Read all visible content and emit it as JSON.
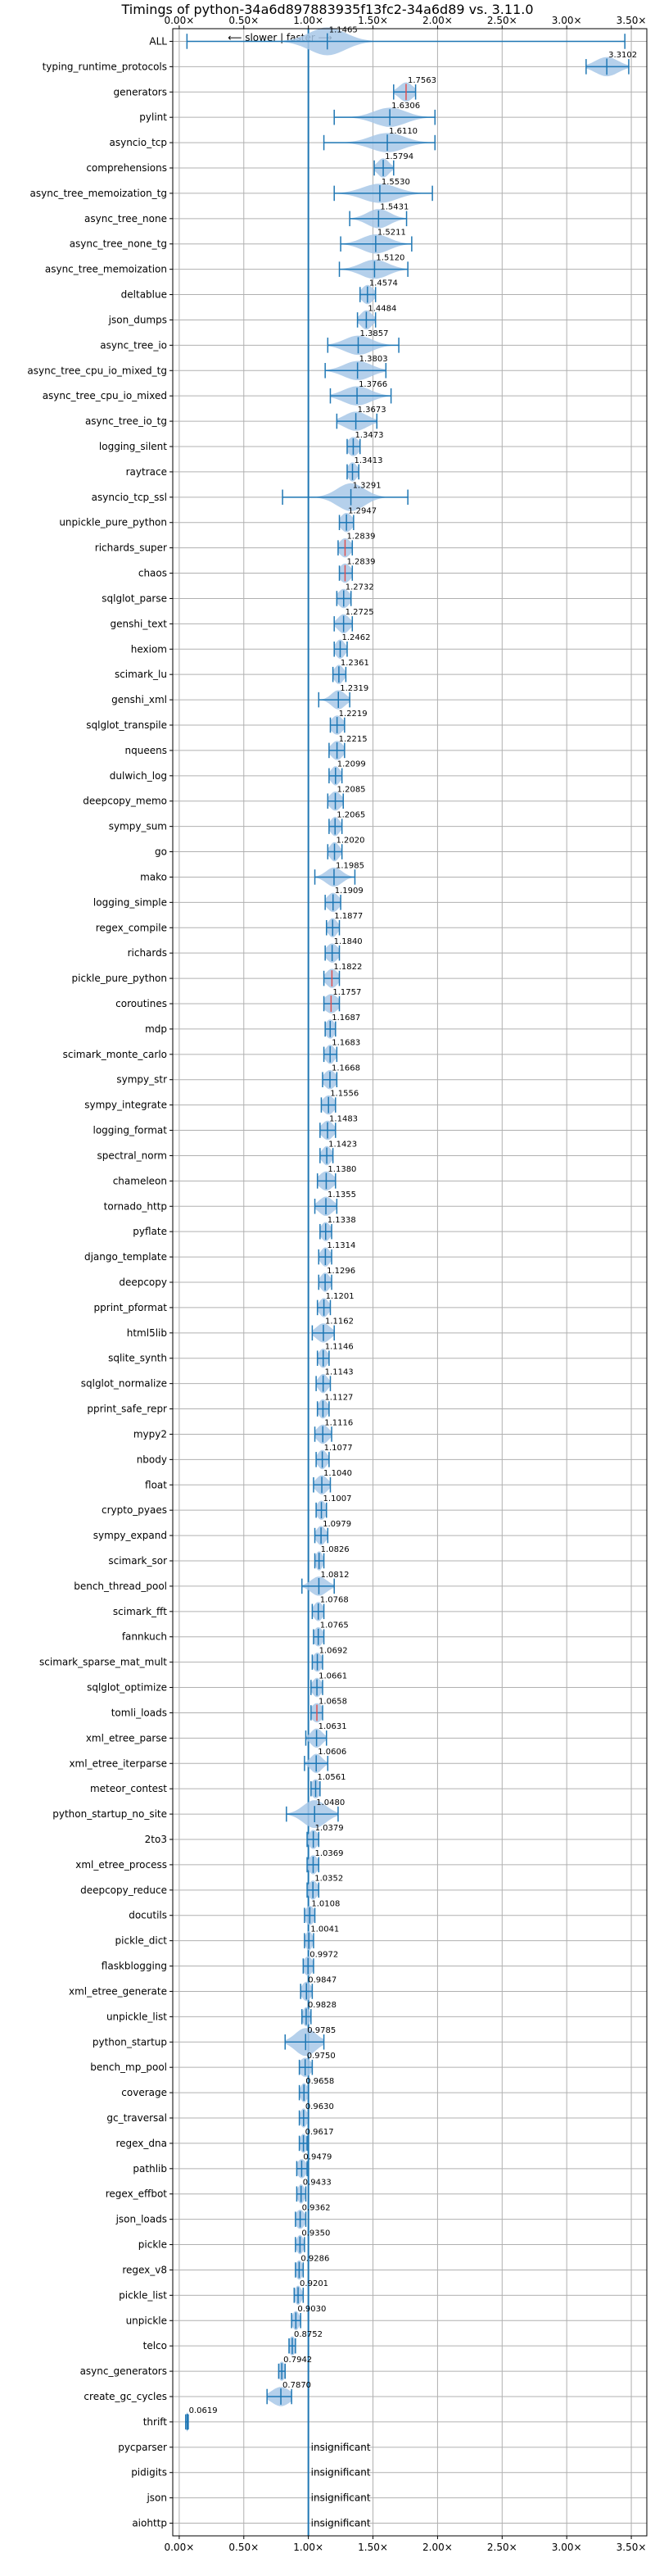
{
  "chart_data": {
    "type": "violin",
    "title": "Timings of python-34a6d897883935f13fc2-34a6d89 vs. 3.11.0",
    "direction_label": "⟵ slower | faster ⟶",
    "x_ticks": [
      0.0,
      0.5,
      1.0,
      1.5,
      2.0,
      2.5,
      3.0,
      3.5
    ],
    "x_tick_labels": [
      "0.00×",
      "0.50×",
      "1.00×",
      "1.50×",
      "2.00×",
      "2.50×",
      "3.00×",
      "3.50×"
    ],
    "xlim": [
      -0.05,
      3.62
    ],
    "reference_line": 1.0,
    "grid": true,
    "colors": {
      "violin": "#a8c8e8",
      "stroke": "#1f77b4",
      "median": "#e05050",
      "grid": "#b0b0b0"
    },
    "insignificant_label": "insignificant",
    "benchmarks": [
      {
        "name": "ALL",
        "value": 1.1465,
        "label": "1.1465",
        "min": 0.06,
        "max": 3.45,
        "spread": 0.16,
        "shape": "wide"
      },
      {
        "name": "typing_runtime_protocols",
        "value": 3.3102,
        "label": "3.3102",
        "min": 3.15,
        "max": 3.48,
        "spread": 0.1
      },
      {
        "name": "generators",
        "value": 1.7563,
        "label": "1.7563",
        "min": 1.66,
        "max": 1.83,
        "spread": 0.06
      },
      {
        "name": "pylint",
        "value": 1.6306,
        "label": "1.6306",
        "min": 1.2,
        "max": 1.98,
        "spread": 0.14
      },
      {
        "name": "asyncio_tcp",
        "value": 1.611,
        "label": "1.6110",
        "min": 1.12,
        "max": 1.98,
        "spread": 0.15
      },
      {
        "name": "comprehensions",
        "value": 1.5794,
        "label": "1.5794",
        "min": 1.51,
        "max": 1.66,
        "spread": 0.05
      },
      {
        "name": "async_tree_memoization_tg",
        "value": 1.553,
        "label": "1.5530",
        "min": 1.2,
        "max": 1.96,
        "spread": 0.15
      },
      {
        "name": "async_tree_none",
        "value": 1.5431,
        "label": "1.5431",
        "min": 1.32,
        "max": 1.76,
        "spread": 0.1
      },
      {
        "name": "async_tree_none_tg",
        "value": 1.5211,
        "label": "1.5211",
        "min": 1.25,
        "max": 1.8,
        "spread": 0.12
      },
      {
        "name": "async_tree_memoization",
        "value": 1.512,
        "label": "1.5120",
        "min": 1.24,
        "max": 1.77,
        "spread": 0.12
      },
      {
        "name": "deltablue",
        "value": 1.4574,
        "label": "1.4574",
        "min": 1.4,
        "max": 1.52,
        "spread": 0.05
      },
      {
        "name": "json_dumps",
        "value": 1.4484,
        "label": "1.4484",
        "min": 1.38,
        "max": 1.52,
        "spread": 0.05
      },
      {
        "name": "async_tree_io",
        "value": 1.3857,
        "label": "1.3857",
        "min": 1.15,
        "max": 1.7,
        "spread": 0.12
      },
      {
        "name": "async_tree_cpu_io_mixed_tg",
        "value": 1.3803,
        "label": "1.3803",
        "min": 1.13,
        "max": 1.6,
        "spread": 0.12
      },
      {
        "name": "async_tree_cpu_io_mixed",
        "value": 1.3766,
        "label": "1.3766",
        "min": 1.17,
        "max": 1.64,
        "spread": 0.12
      },
      {
        "name": "async_tree_io_tg",
        "value": 1.3673,
        "label": "1.3673",
        "min": 1.22,
        "max": 1.53,
        "spread": 0.1
      },
      {
        "name": "logging_silent",
        "value": 1.3473,
        "label": "1.3473",
        "min": 1.3,
        "max": 1.4,
        "spread": 0.05
      },
      {
        "name": "raytrace",
        "value": 1.3413,
        "label": "1.3413",
        "min": 1.3,
        "max": 1.39,
        "spread": 0.04
      },
      {
        "name": "asyncio_tcp_ssl",
        "value": 1.3291,
        "label": "1.3291",
        "min": 0.8,
        "max": 1.77,
        "spread": 0.12,
        "shape": "wide"
      },
      {
        "name": "unpickle_pure_python",
        "value": 1.2947,
        "label": "1.2947",
        "min": 1.24,
        "max": 1.35,
        "spread": 0.05
      },
      {
        "name": "richards_super",
        "value": 1.2839,
        "label": "1.2839",
        "min": 1.23,
        "max": 1.34,
        "spread": 0.05
      },
      {
        "name": "chaos",
        "value": 1.2839,
        "label": "1.2839",
        "min": 1.24,
        "max": 1.34,
        "spread": 0.05
      },
      {
        "name": "sqlglot_parse",
        "value": 1.2732,
        "label": "1.2732",
        "min": 1.22,
        "max": 1.33,
        "spread": 0.05
      },
      {
        "name": "genshi_text",
        "value": 1.2725,
        "label": "1.2725",
        "min": 1.2,
        "max": 1.34,
        "spread": 0.05
      },
      {
        "name": "hexiom",
        "value": 1.2462,
        "label": "1.2462",
        "min": 1.2,
        "max": 1.3,
        "spread": 0.04
      },
      {
        "name": "scimark_lu",
        "value": 1.2361,
        "label": "1.2361",
        "min": 1.19,
        "max": 1.29,
        "spread": 0.04
      },
      {
        "name": "genshi_xml",
        "value": 1.2319,
        "label": "1.2319",
        "min": 1.08,
        "max": 1.32,
        "spread": 0.06
      },
      {
        "name": "sqlglot_transpile",
        "value": 1.2219,
        "label": "1.2219",
        "min": 1.17,
        "max": 1.28,
        "spread": 0.05
      },
      {
        "name": "nqueens",
        "value": 1.2215,
        "label": "1.2215",
        "min": 1.16,
        "max": 1.28,
        "spread": 0.05
      },
      {
        "name": "dulwich_log",
        "value": 1.2099,
        "label": "1.2099",
        "min": 1.16,
        "max": 1.26,
        "spread": 0.04
      },
      {
        "name": "deepcopy_memo",
        "value": 1.2085,
        "label": "1.2085",
        "min": 1.15,
        "max": 1.27,
        "spread": 0.05
      },
      {
        "name": "sympy_sum",
        "value": 1.2065,
        "label": "1.2065",
        "min": 1.16,
        "max": 1.26,
        "spread": 0.04
      },
      {
        "name": "go",
        "value": 1.202,
        "label": "1.2020",
        "min": 1.15,
        "max": 1.26,
        "spread": 0.04
      },
      {
        "name": "mako",
        "value": 1.1985,
        "label": "1.1985",
        "min": 1.05,
        "max": 1.36,
        "spread": 0.07
      },
      {
        "name": "logging_simple",
        "value": 1.1909,
        "label": "1.1909",
        "min": 1.13,
        "max": 1.25,
        "spread": 0.05
      },
      {
        "name": "regex_compile",
        "value": 1.1877,
        "label": "1.1877",
        "min": 1.14,
        "max": 1.24,
        "spread": 0.04
      },
      {
        "name": "richards",
        "value": 1.184,
        "label": "1.1840",
        "min": 1.13,
        "max": 1.24,
        "spread": 0.05
      },
      {
        "name": "pickle_pure_python",
        "value": 1.1822,
        "label": "1.1822",
        "min": 1.12,
        "max": 1.24,
        "spread": 0.05
      },
      {
        "name": "coroutines",
        "value": 1.1757,
        "label": "1.1757",
        "min": 1.12,
        "max": 1.24,
        "spread": 0.06
      },
      {
        "name": "mdp",
        "value": 1.1687,
        "label": "1.1687",
        "min": 1.13,
        "max": 1.21,
        "spread": 0.04
      },
      {
        "name": "scimark_monte_carlo",
        "value": 1.1683,
        "label": "1.1683",
        "min": 1.12,
        "max": 1.22,
        "spread": 0.04
      },
      {
        "name": "sympy_str",
        "value": 1.1668,
        "label": "1.1668",
        "min": 1.11,
        "max": 1.22,
        "spread": 0.05
      },
      {
        "name": "sympy_integrate",
        "value": 1.1556,
        "label": "1.1556",
        "min": 1.1,
        "max": 1.21,
        "spread": 0.05
      },
      {
        "name": "logging_format",
        "value": 1.1483,
        "label": "1.1483",
        "min": 1.09,
        "max": 1.21,
        "spread": 0.05
      },
      {
        "name": "spectral_norm",
        "value": 1.1423,
        "label": "1.1423",
        "min": 1.09,
        "max": 1.19,
        "spread": 0.04
      },
      {
        "name": "chameleon",
        "value": 1.138,
        "label": "1.1380",
        "min": 1.07,
        "max": 1.21,
        "spread": 0.06
      },
      {
        "name": "tornado_http",
        "value": 1.1355,
        "label": "1.1355",
        "min": 1.05,
        "max": 1.22,
        "spread": 0.06
      },
      {
        "name": "pyflate",
        "value": 1.1338,
        "label": "1.1338",
        "min": 1.09,
        "max": 1.18,
        "spread": 0.04
      },
      {
        "name": "django_template",
        "value": 1.1314,
        "label": "1.1314",
        "min": 1.08,
        "max": 1.18,
        "spread": 0.04
      },
      {
        "name": "deepcopy",
        "value": 1.1296,
        "label": "1.1296",
        "min": 1.08,
        "max": 1.18,
        "spread": 0.04
      },
      {
        "name": "pprint_pformat",
        "value": 1.1201,
        "label": "1.1201",
        "min": 1.07,
        "max": 1.17,
        "spread": 0.04
      },
      {
        "name": "html5lib",
        "value": 1.1162,
        "label": "1.1162",
        "min": 1.03,
        "max": 1.2,
        "spread": 0.06
      },
      {
        "name": "sqlite_synth",
        "value": 1.1146,
        "label": "1.1146",
        "min": 1.07,
        "max": 1.16,
        "spread": 0.04
      },
      {
        "name": "sqlglot_normalize",
        "value": 1.1143,
        "label": "1.1143",
        "min": 1.06,
        "max": 1.17,
        "spread": 0.04
      },
      {
        "name": "pprint_safe_repr",
        "value": 1.1127,
        "label": "1.1127",
        "min": 1.07,
        "max": 1.16,
        "spread": 0.04
      },
      {
        "name": "mypy2",
        "value": 1.1116,
        "label": "1.1116",
        "min": 1.05,
        "max": 1.18,
        "spread": 0.05
      },
      {
        "name": "nbody",
        "value": 1.1077,
        "label": "1.1077",
        "min": 1.06,
        "max": 1.16,
        "spread": 0.04
      },
      {
        "name": "float",
        "value": 1.104,
        "label": "1.1040",
        "min": 1.04,
        "max": 1.17,
        "spread": 0.05
      },
      {
        "name": "crypto_pyaes",
        "value": 1.1007,
        "label": "1.1007",
        "min": 1.06,
        "max": 1.14,
        "spread": 0.04
      },
      {
        "name": "sympy_expand",
        "value": 1.0979,
        "label": "1.0979",
        "min": 1.05,
        "max": 1.15,
        "spread": 0.04
      },
      {
        "name": "scimark_sor",
        "value": 1.0826,
        "label": "1.0826",
        "min": 1.05,
        "max": 1.12,
        "spread": 0.03
      },
      {
        "name": "bench_thread_pool",
        "value": 1.0812,
        "label": "1.0812",
        "min": 0.95,
        "max": 1.2,
        "spread": 0.07
      },
      {
        "name": "scimark_fft",
        "value": 1.0768,
        "label": "1.0768",
        "min": 1.03,
        "max": 1.12,
        "spread": 0.04
      },
      {
        "name": "fannkuch",
        "value": 1.0765,
        "label": "1.0765",
        "min": 1.04,
        "max": 1.12,
        "spread": 0.04
      },
      {
        "name": "scimark_sparse_mat_mult",
        "value": 1.0692,
        "label": "1.0692",
        "min": 1.03,
        "max": 1.11,
        "spread": 0.04
      },
      {
        "name": "sqlglot_optimize",
        "value": 1.0661,
        "label": "1.0661",
        "min": 1.02,
        "max": 1.11,
        "spread": 0.04
      },
      {
        "name": "tomli_loads",
        "value": 1.0658,
        "label": "1.0658",
        "min": 1.02,
        "max": 1.11,
        "spread": 0.05
      },
      {
        "name": "xml_etree_parse",
        "value": 1.0631,
        "label": "1.0631",
        "min": 0.98,
        "max": 1.14,
        "spread": 0.05
      },
      {
        "name": "xml_etree_iterparse",
        "value": 1.0606,
        "label": "1.0606",
        "min": 0.97,
        "max": 1.15,
        "spread": 0.05
      },
      {
        "name": "meteor_contest",
        "value": 1.0561,
        "label": "1.0561",
        "min": 1.02,
        "max": 1.09,
        "spread": 0.04
      },
      {
        "name": "python_startup_no_site",
        "value": 1.048,
        "label": "1.0480",
        "min": 0.83,
        "max": 1.23,
        "spread": 0.1,
        "shape": "wide"
      },
      {
        "name": "2to3",
        "value": 1.0379,
        "label": "1.0379",
        "min": 0.99,
        "max": 1.08,
        "spread": 0.04
      },
      {
        "name": "xml_etree_process",
        "value": 1.0369,
        "label": "1.0369",
        "min": 0.99,
        "max": 1.08,
        "spread": 0.04
      },
      {
        "name": "deepcopy_reduce",
        "value": 1.0352,
        "label": "1.0352",
        "min": 0.99,
        "max": 1.08,
        "spread": 0.04
      },
      {
        "name": "docutils",
        "value": 1.0108,
        "label": "1.0108",
        "min": 0.97,
        "max": 1.05,
        "spread": 0.04
      },
      {
        "name": "pickle_dict",
        "value": 1.0041,
        "label": "1.0041",
        "min": 0.97,
        "max": 1.04,
        "spread": 0.03
      },
      {
        "name": "flaskblogging",
        "value": 0.9972,
        "label": "0.9972",
        "min": 0.96,
        "max": 1.04,
        "spread": 0.04
      },
      {
        "name": "xml_etree_generate",
        "value": 0.9847,
        "label": "0.9847",
        "min": 0.94,
        "max": 1.03,
        "spread": 0.04
      },
      {
        "name": "unpickle_list",
        "value": 0.9828,
        "label": "0.9828",
        "min": 0.95,
        "max": 1.02,
        "spread": 0.03
      },
      {
        "name": "python_startup",
        "value": 0.9785,
        "label": "0.9785",
        "min": 0.82,
        "max": 1.12,
        "spread": 0.09,
        "shape": "wide"
      },
      {
        "name": "bench_mp_pool",
        "value": 0.975,
        "label": "0.9750",
        "min": 0.93,
        "max": 1.03,
        "spread": 0.05
      },
      {
        "name": "coverage",
        "value": 0.9658,
        "label": "0.9658",
        "min": 0.93,
        "max": 1.0,
        "spread": 0.03
      },
      {
        "name": "gc_traversal",
        "value": 0.963,
        "label": "0.9630",
        "min": 0.93,
        "max": 1.0,
        "spread": 0.03
      },
      {
        "name": "regex_dna",
        "value": 0.9617,
        "label": "0.9617",
        "min": 0.93,
        "max": 0.99,
        "spread": 0.03
      },
      {
        "name": "pathlib",
        "value": 0.9479,
        "label": "0.9479",
        "min": 0.91,
        "max": 0.99,
        "spread": 0.04
      },
      {
        "name": "regex_effbot",
        "value": 0.9433,
        "label": "0.9433",
        "min": 0.91,
        "max": 0.98,
        "spread": 0.03
      },
      {
        "name": "json_loads",
        "value": 0.9362,
        "label": "0.9362",
        "min": 0.9,
        "max": 0.98,
        "spread": 0.04
      },
      {
        "name": "pickle",
        "value": 0.935,
        "label": "0.9350",
        "min": 0.9,
        "max": 0.97,
        "spread": 0.03
      },
      {
        "name": "regex_v8",
        "value": 0.9286,
        "label": "0.9286",
        "min": 0.9,
        "max": 0.96,
        "spread": 0.03
      },
      {
        "name": "pickle_list",
        "value": 0.9201,
        "label": "0.9201",
        "min": 0.89,
        "max": 0.96,
        "spread": 0.03
      },
      {
        "name": "unpickle",
        "value": 0.903,
        "label": "0.9030",
        "min": 0.87,
        "max": 0.94,
        "spread": 0.03
      },
      {
        "name": "telco",
        "value": 0.8752,
        "label": "0.8752",
        "min": 0.85,
        "max": 0.9,
        "spread": 0.03
      },
      {
        "name": "async_generators",
        "value": 0.7942,
        "label": "0.7942",
        "min": 0.77,
        "max": 0.82,
        "spread": 0.03
      },
      {
        "name": "create_gc_cycles",
        "value": 0.787,
        "label": "0.7870",
        "min": 0.68,
        "max": 0.87,
        "spread": 0.08
      },
      {
        "name": "thrift",
        "value": 0.0619,
        "label": "0.0619",
        "min": 0.05,
        "max": 0.07,
        "spread": 0.01
      },
      {
        "name": "pycparser",
        "value": null,
        "label": "insignificant"
      },
      {
        "name": "pidigits",
        "value": null,
        "label": "insignificant"
      },
      {
        "name": "json",
        "value": null,
        "label": "insignificant"
      },
      {
        "name": "aiohttp",
        "value": null,
        "label": "insignificant"
      }
    ]
  }
}
